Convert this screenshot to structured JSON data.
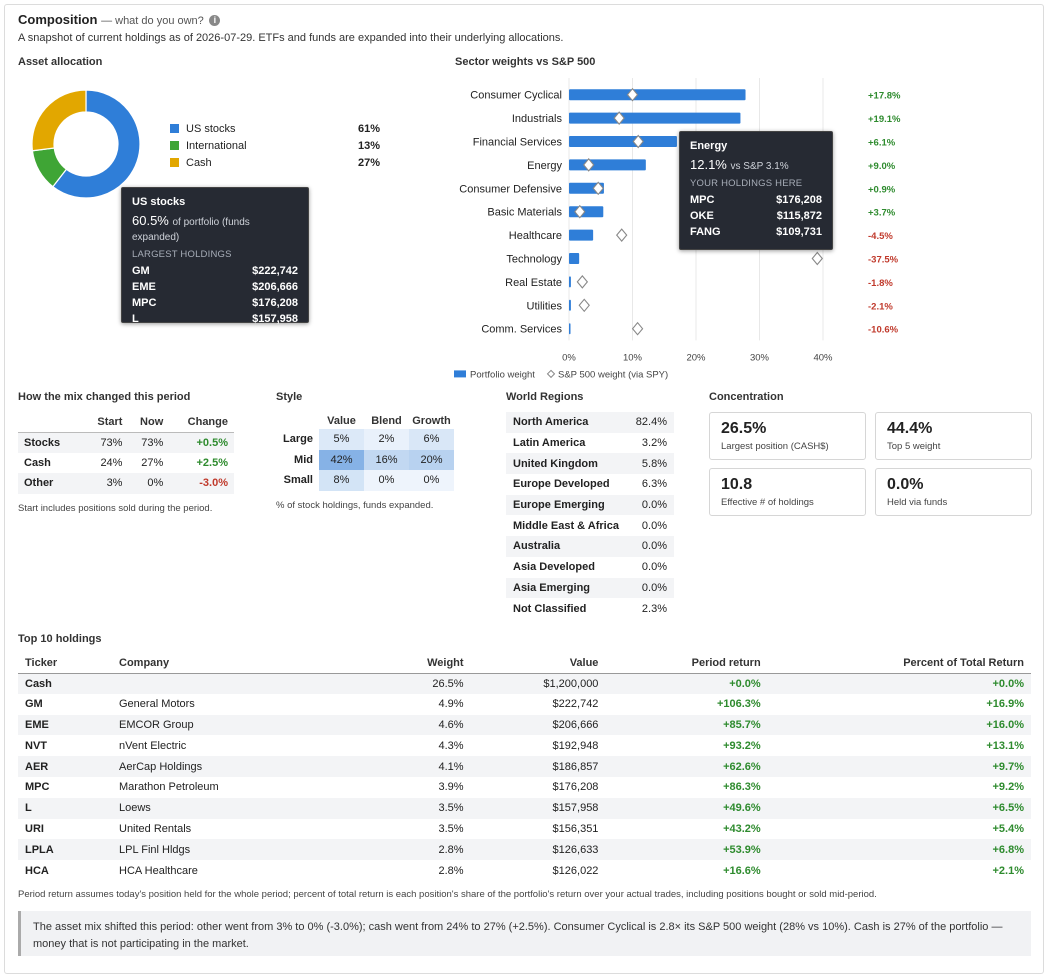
{
  "header": {
    "title": "Composition",
    "subtitle_inline": "— what do you own?",
    "info_icon": "i",
    "description": "A snapshot of current holdings as of 2026-07-29. ETFs and funds are expanded into their underlying allocations."
  },
  "asset_allocation": {
    "heading": "Asset allocation",
    "items": [
      {
        "label": "US stocks",
        "pct_text": "61%",
        "value": 60.5,
        "color": "#2f7ed8"
      },
      {
        "label": "International",
        "pct_text": "13%",
        "value": 12.5,
        "color": "#3fa535"
      },
      {
        "label": "Cash",
        "pct_text": "27%",
        "value": 27.0,
        "color": "#e2a700"
      }
    ],
    "tooltip": {
      "name": "US stocks",
      "pct": "60.5%",
      "pct_note": "of portfolio (funds expanded)",
      "sub": "LARGEST HOLDINGS",
      "rows": [
        {
          "t": "GM",
          "v": "$222,742"
        },
        {
          "t": "EME",
          "v": "$206,666"
        },
        {
          "t": "MPC",
          "v": "$176,208"
        },
        {
          "t": "L",
          "v": "$157,958"
        }
      ]
    }
  },
  "sector": {
    "heading": "Sector weights vs S&P 500",
    "chart_data": {
      "type": "bar",
      "orientation": "horizontal",
      "categories": [
        "Consumer Cyclical",
        "Industrials",
        "Financial Services",
        "Energy",
        "Consumer Defensive",
        "Basic Materials",
        "Healthcare",
        "Technology",
        "Real Estate",
        "Utilities",
        "Comm. Services"
      ],
      "series": [
        {
          "name": "Portfolio weight",
          "values": [
            27.8,
            27.0,
            17.0,
            12.1,
            5.5,
            5.4,
            3.8,
            1.6,
            0.3,
            0.3,
            0.2
          ]
        },
        {
          "name": "S&P 500 weight (via SPY)",
          "values": [
            10.0,
            7.9,
            10.9,
            3.1,
            4.6,
            1.7,
            8.3,
            39.1,
            2.1,
            2.4,
            10.8
          ]
        }
      ],
      "diff_labels": [
        "+17.8%",
        "+19.1%",
        "+6.1%",
        "+9.0%",
        "+0.9%",
        "+3.7%",
        "-4.5%",
        "-37.5%",
        "-1.8%",
        "-2.1%",
        "-10.6%"
      ],
      "x_ticks": [
        "0%",
        "10%",
        "20%",
        "30%",
        "40%"
      ],
      "xlim": [
        0,
        40
      ],
      "grid": true,
      "legend": "bottom",
      "colors": {
        "bar": "#2f7ed8",
        "pos": "#2e8b2e",
        "neg": "#c0392b"
      }
    },
    "tooltip": {
      "name": "Energy",
      "pct": "12.1%",
      "pct_note": "vs S&P 3.1%",
      "sub": "YOUR HOLDINGS HERE",
      "rows": [
        {
          "t": "MPC",
          "v": "$176,208"
        },
        {
          "t": "OKE",
          "v": "$115,872"
        },
        {
          "t": "FANG",
          "v": "$109,731"
        }
      ]
    }
  },
  "mix": {
    "heading": "How the mix changed this period",
    "columns": [
      "",
      "Start",
      "Now",
      "Change"
    ],
    "rows": [
      {
        "label": "Stocks",
        "start": "73%",
        "now": "73%",
        "change": "+0.5%",
        "dir": "pos"
      },
      {
        "label": "Cash",
        "start": "24%",
        "now": "27%",
        "change": "+2.5%",
        "dir": "pos"
      },
      {
        "label": "Other",
        "start": "3%",
        "now": "0%",
        "change": "-3.0%",
        "dir": "neg"
      }
    ],
    "note": "Start includes positions sold during the period."
  },
  "style": {
    "heading": "Style",
    "columns": [
      "Value",
      "Blend",
      "Growth"
    ],
    "rows": [
      {
        "label": "Large",
        "cells": [
          {
            "v": "5%",
            "bg": "#dce9f8"
          },
          {
            "v": "2%",
            "bg": "#e9f1fb"
          },
          {
            "v": "6%",
            "bg": "#d9e7f7"
          }
        ]
      },
      {
        "label": "Mid",
        "cells": [
          {
            "v": "42%",
            "bg": "#86b2e6"
          },
          {
            "v": "16%",
            "bg": "#c2d8f2"
          },
          {
            "v": "20%",
            "bg": "#b8d2f0"
          }
        ]
      },
      {
        "label": "Small",
        "cells": [
          {
            "v": "8%",
            "bg": "#d3e4f6"
          },
          {
            "v": "0%",
            "bg": "#eef4fc"
          },
          {
            "v": "0%",
            "bg": "#eef4fc"
          }
        ]
      }
    ],
    "note": "% of stock holdings, funds expanded."
  },
  "regions": {
    "heading": "World Regions",
    "rows": [
      {
        "name": "North America",
        "v": "82.4%"
      },
      {
        "name": "Latin America",
        "v": "3.2%"
      },
      {
        "name": "United Kingdom",
        "v": "5.8%"
      },
      {
        "name": "Europe Developed",
        "v": "6.3%"
      },
      {
        "name": "Europe Emerging",
        "v": "0.0%"
      },
      {
        "name": "Middle East & Africa",
        "v": "0.0%"
      },
      {
        "name": "Australia",
        "v": "0.0%"
      },
      {
        "name": "Asia Developed",
        "v": "0.0%"
      },
      {
        "name": "Asia Emerging",
        "v": "0.0%"
      },
      {
        "name": "Not Classified",
        "v": "2.3%"
      }
    ]
  },
  "concentration": {
    "heading": "Concentration",
    "cards": [
      {
        "value": "26.5%",
        "label": "Largest position (CASH$)"
      },
      {
        "value": "44.4%",
        "label": "Top 5 weight"
      },
      {
        "value": "10.8",
        "label": "Effective # of holdings"
      },
      {
        "value": "0.0%",
        "label": "Held via funds"
      }
    ]
  },
  "holdings": {
    "heading": "Top 10 holdings",
    "columns": [
      "Ticker",
      "Company",
      "Weight",
      "Value",
      "Period return",
      "Percent of Total Return"
    ],
    "rows": [
      {
        "ticker": "Cash",
        "company": "",
        "weight": "26.5%",
        "value": "$1,200,000",
        "ret": "+0.0%",
        "ptr": "+0.0%"
      },
      {
        "ticker": "GM",
        "company": "General Motors",
        "weight": "4.9%",
        "value": "$222,742",
        "ret": "+106.3%",
        "ptr": "+16.9%"
      },
      {
        "ticker": "EME",
        "company": "EMCOR Group",
        "weight": "4.6%",
        "value": "$206,666",
        "ret": "+85.7%",
        "ptr": "+16.0%"
      },
      {
        "ticker": "NVT",
        "company": "nVent Electric",
        "weight": "4.3%",
        "value": "$192,948",
        "ret": "+93.2%",
        "ptr": "+13.1%"
      },
      {
        "ticker": "AER",
        "company": "AerCap Holdings",
        "weight": "4.1%",
        "value": "$186,857",
        "ret": "+62.6%",
        "ptr": "+9.7%"
      },
      {
        "ticker": "MPC",
        "company": "Marathon Petroleum",
        "weight": "3.9%",
        "value": "$176,208",
        "ret": "+86.3%",
        "ptr": "+9.2%"
      },
      {
        "ticker": "L",
        "company": "Loews",
        "weight": "3.5%",
        "value": "$157,958",
        "ret": "+49.6%",
        "ptr": "+6.5%"
      },
      {
        "ticker": "URI",
        "company": "United Rentals",
        "weight": "3.5%",
        "value": "$156,351",
        "ret": "+43.2%",
        "ptr": "+5.4%"
      },
      {
        "ticker": "LPLA",
        "company": "LPL Finl Hldgs",
        "weight": "2.8%",
        "value": "$126,633",
        "ret": "+53.9%",
        "ptr": "+6.8%"
      },
      {
        "ticker": "HCA",
        "company": "HCA Healthcare",
        "weight": "2.8%",
        "value": "$126,022",
        "ret": "+16.6%",
        "ptr": "+2.1%"
      }
    ],
    "note": "Period return assumes today's position held for the whole period; percent of total return is each position's share of the portfolio's return over your actual trades, including positions bought or sold mid-period."
  },
  "summary": "The asset mix shifted this period: other went from 3% to 0% (-3.0%); cash went from 24% to 27% (+2.5%). Consumer Cyclical is 2.8× its S&P 500 weight (28% vs 10%). Cash is 27% of the portfolio — money that is not participating in the market."
}
